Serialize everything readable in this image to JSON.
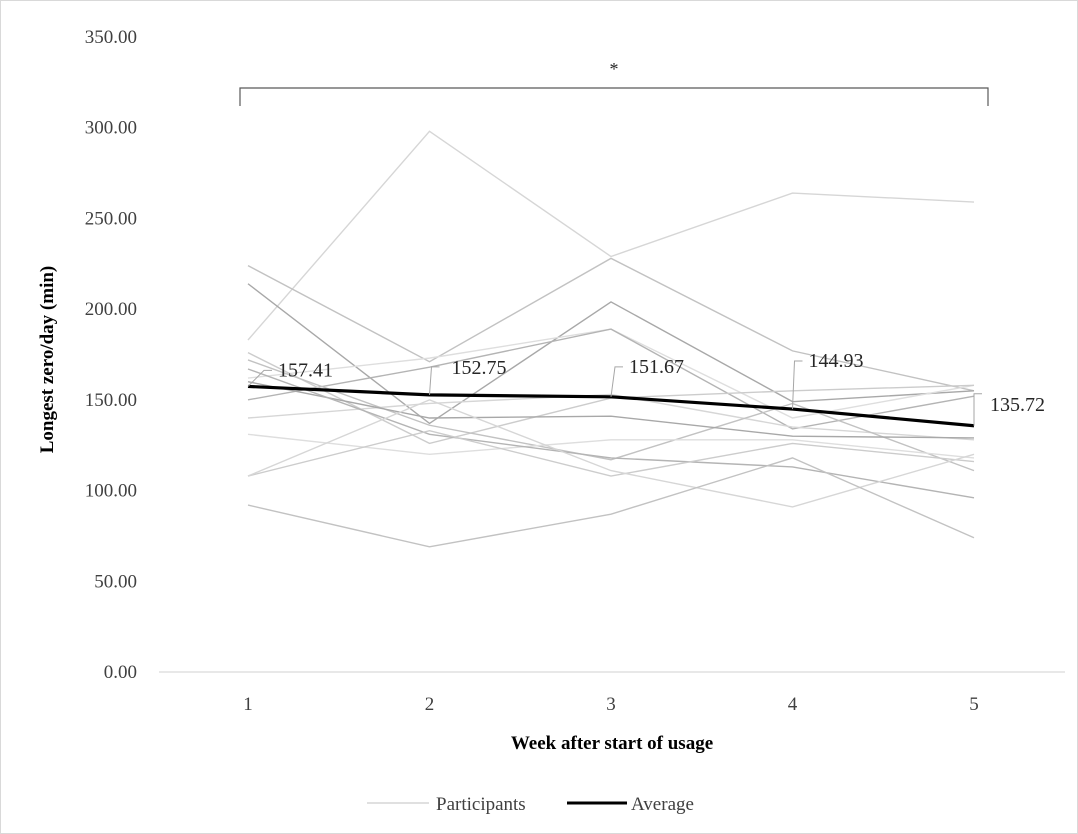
{
  "chart_data": {
    "type": "line",
    "title": "",
    "xlabel": "Week after start of usage",
    "ylabel": "Longest zero/day (min)",
    "x": [
      "1",
      "2",
      "3",
      "4",
      "5"
    ],
    "ylim": [
      0,
      350
    ],
    "yticks": [
      "0.00",
      "50.00",
      "100.00",
      "150.00",
      "200.00",
      "250.00",
      "300.00",
      "350.00"
    ],
    "grid": false,
    "legend": {
      "position": "bottom",
      "entries": [
        "Participants",
        "Average"
      ]
    },
    "significance": {
      "label": "*",
      "from": "1",
      "to": "5"
    },
    "colors": {
      "participants": [
        "#d6d6d6",
        "#c2c2c2",
        "#a8a8a8",
        "#dedede",
        "#b4b4b4",
        "#cccccc"
      ],
      "average": "#000000"
    },
    "series": [
      {
        "name": "Participants",
        "values": [
          183,
          298,
          229,
          264,
          259
        ]
      },
      {
        "name": "Participants",
        "values": [
          224,
          171,
          228,
          177,
          155
        ]
      },
      {
        "name": "Participants",
        "values": [
          214,
          137,
          204,
          149,
          155
        ]
      },
      {
        "name": "Participants",
        "values": [
          162,
          173,
          189,
          140,
          158
        ]
      },
      {
        "name": "Participants",
        "values": [
          150,
          168,
          189,
          134,
          152
        ]
      },
      {
        "name": "Participants",
        "values": [
          176,
          126,
          151,
          155,
          158
        ]
      },
      {
        "name": "Participants",
        "values": [
          140,
          148,
          153,
          135,
          128
        ]
      },
      {
        "name": "Participants",
        "values": [
          172,
          136,
          117,
          148,
          111
        ]
      },
      {
        "name": "Participants",
        "values": [
          160,
          140,
          141,
          130,
          129
        ]
      },
      {
        "name": "Participants",
        "values": [
          131,
          120,
          128,
          128,
          118
        ]
      },
      {
        "name": "Participants",
        "values": [
          167,
          131,
          118,
          113,
          96
        ]
      },
      {
        "name": "Participants",
        "values": [
          108,
          133,
          108,
          126,
          116
        ]
      },
      {
        "name": "Participants",
        "values": [
          108,
          150,
          111,
          91,
          120
        ]
      },
      {
        "name": "Participants",
        "values": [
          92,
          69,
          87,
          118,
          74
        ]
      },
      {
        "name": "Average",
        "values": [
          157.41,
          152.75,
          151.67,
          144.93,
          135.72
        ]
      }
    ],
    "data_labels": [
      "157.41",
      "152.75",
      "151.67",
      "144.93",
      "135.72"
    ]
  }
}
